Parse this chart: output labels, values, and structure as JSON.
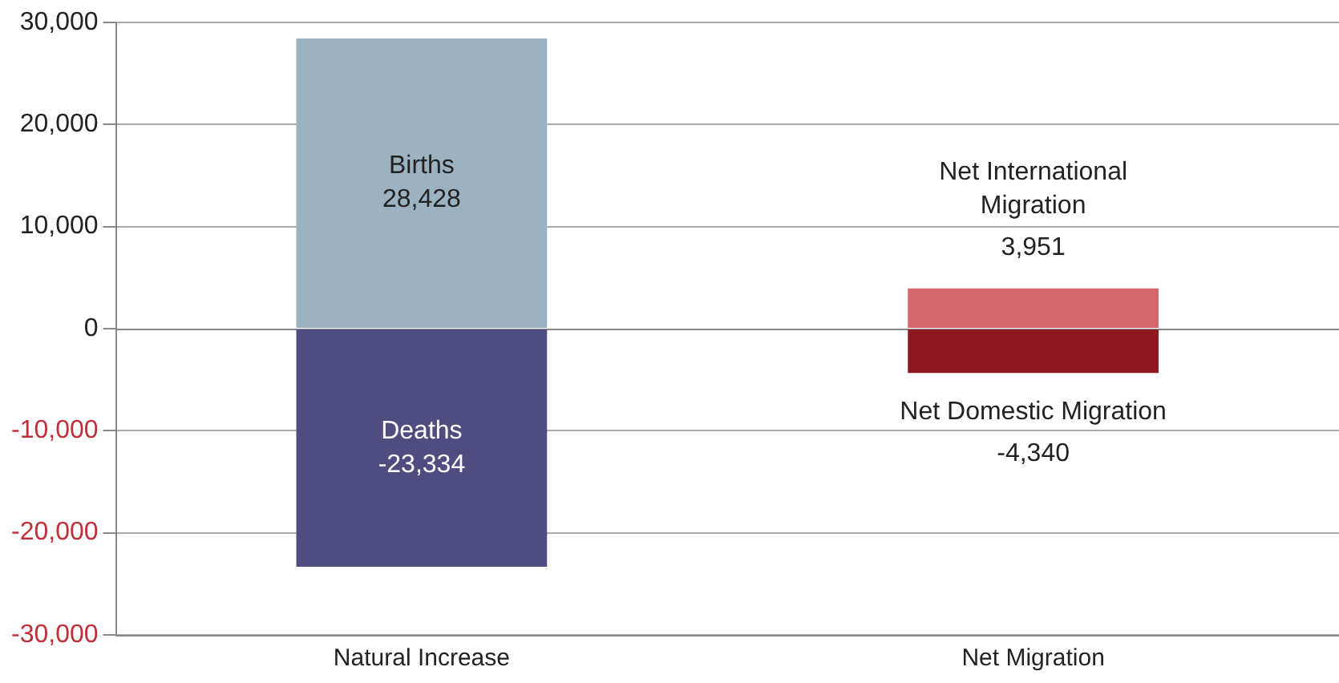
{
  "chart_data": {
    "type": "bar",
    "stacked": true,
    "categories": [
      "Natural Increase",
      "Net Migration"
    ],
    "series": [
      {
        "name": "Births",
        "color": "#9db2c0",
        "values": [
          28428,
          null
        ],
        "value_labels": [
          "28,428",
          null
        ]
      },
      {
        "name": "Deaths",
        "color": "#4f4d80",
        "values": [
          -23334,
          null
        ],
        "value_labels": [
          "-23,334",
          null
        ]
      },
      {
        "name": "Net International Migration",
        "color": "#d3676c",
        "values": [
          null,
          3951
        ],
        "value_labels": [
          null,
          "3,951"
        ]
      },
      {
        "name": "Net Domestic Migration",
        "color": "#8c1a20",
        "values": [
          null,
          -4340
        ],
        "value_labels": [
          null,
          "-4,340"
        ]
      }
    ],
    "ylim": [
      -30000,
      30000
    ],
    "yticks": [
      {
        "value": -30000,
        "label": "-30,000"
      },
      {
        "value": -20000,
        "label": "-20,000"
      },
      {
        "value": -10000,
        "label": "-10,000"
      },
      0,
      {
        "value": 10000,
        "label": "10,000"
      },
      {
        "value": 20000,
        "label": "20,000"
      },
      {
        "value": 30000,
        "label": "30,000"
      }
    ],
    "grid": "y",
    "legend": false
  }
}
